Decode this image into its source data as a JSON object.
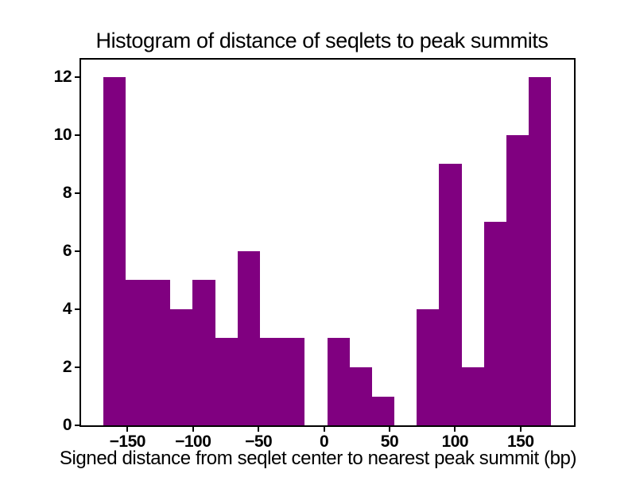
{
  "chart_data": {
    "type": "histogram",
    "title": "Histogram of distance of seqlets to peak summits",
    "xlabel": "Signed distance from seqlet center to nearest peak summit (bp)",
    "ylabel": "",
    "bar_color": "#800080",
    "background_color": "#ffffff",
    "text_color": "#000000",
    "bin_edges": [
      -168.6,
      -151.5,
      -134.4,
      -117.3,
      -100.2,
      -83.1,
      -66.0,
      -48.9,
      -31.8,
      -14.7,
      2.4,
      19.5,
      36.6,
      53.7,
      70.8,
      87.9,
      105.0,
      122.1,
      139.2,
      156.3,
      173.4
    ],
    "counts": [
      12,
      5,
      5,
      4,
      5,
      3,
      6,
      3,
      3,
      0,
      3,
      2,
      1,
      0,
      4,
      9,
      2,
      7,
      10,
      12
    ],
    "x_tick_values": [
      -150,
      -100,
      -50,
      0,
      50,
      100,
      150
    ],
    "x_tick_labels": [
      "−150",
      "−100",
      "−50",
      "0",
      "50",
      "100",
      "150"
    ],
    "y_tick_values": [
      0,
      2,
      4,
      6,
      8,
      10,
      12
    ],
    "y_tick_labels": [
      "0",
      "2",
      "4",
      "6",
      "8",
      "10",
      "12"
    ],
    "xlim": [
      -185.4,
      190.8
    ],
    "ylim": [
      0,
      12.6
    ],
    "grid": false,
    "legend": false
  }
}
